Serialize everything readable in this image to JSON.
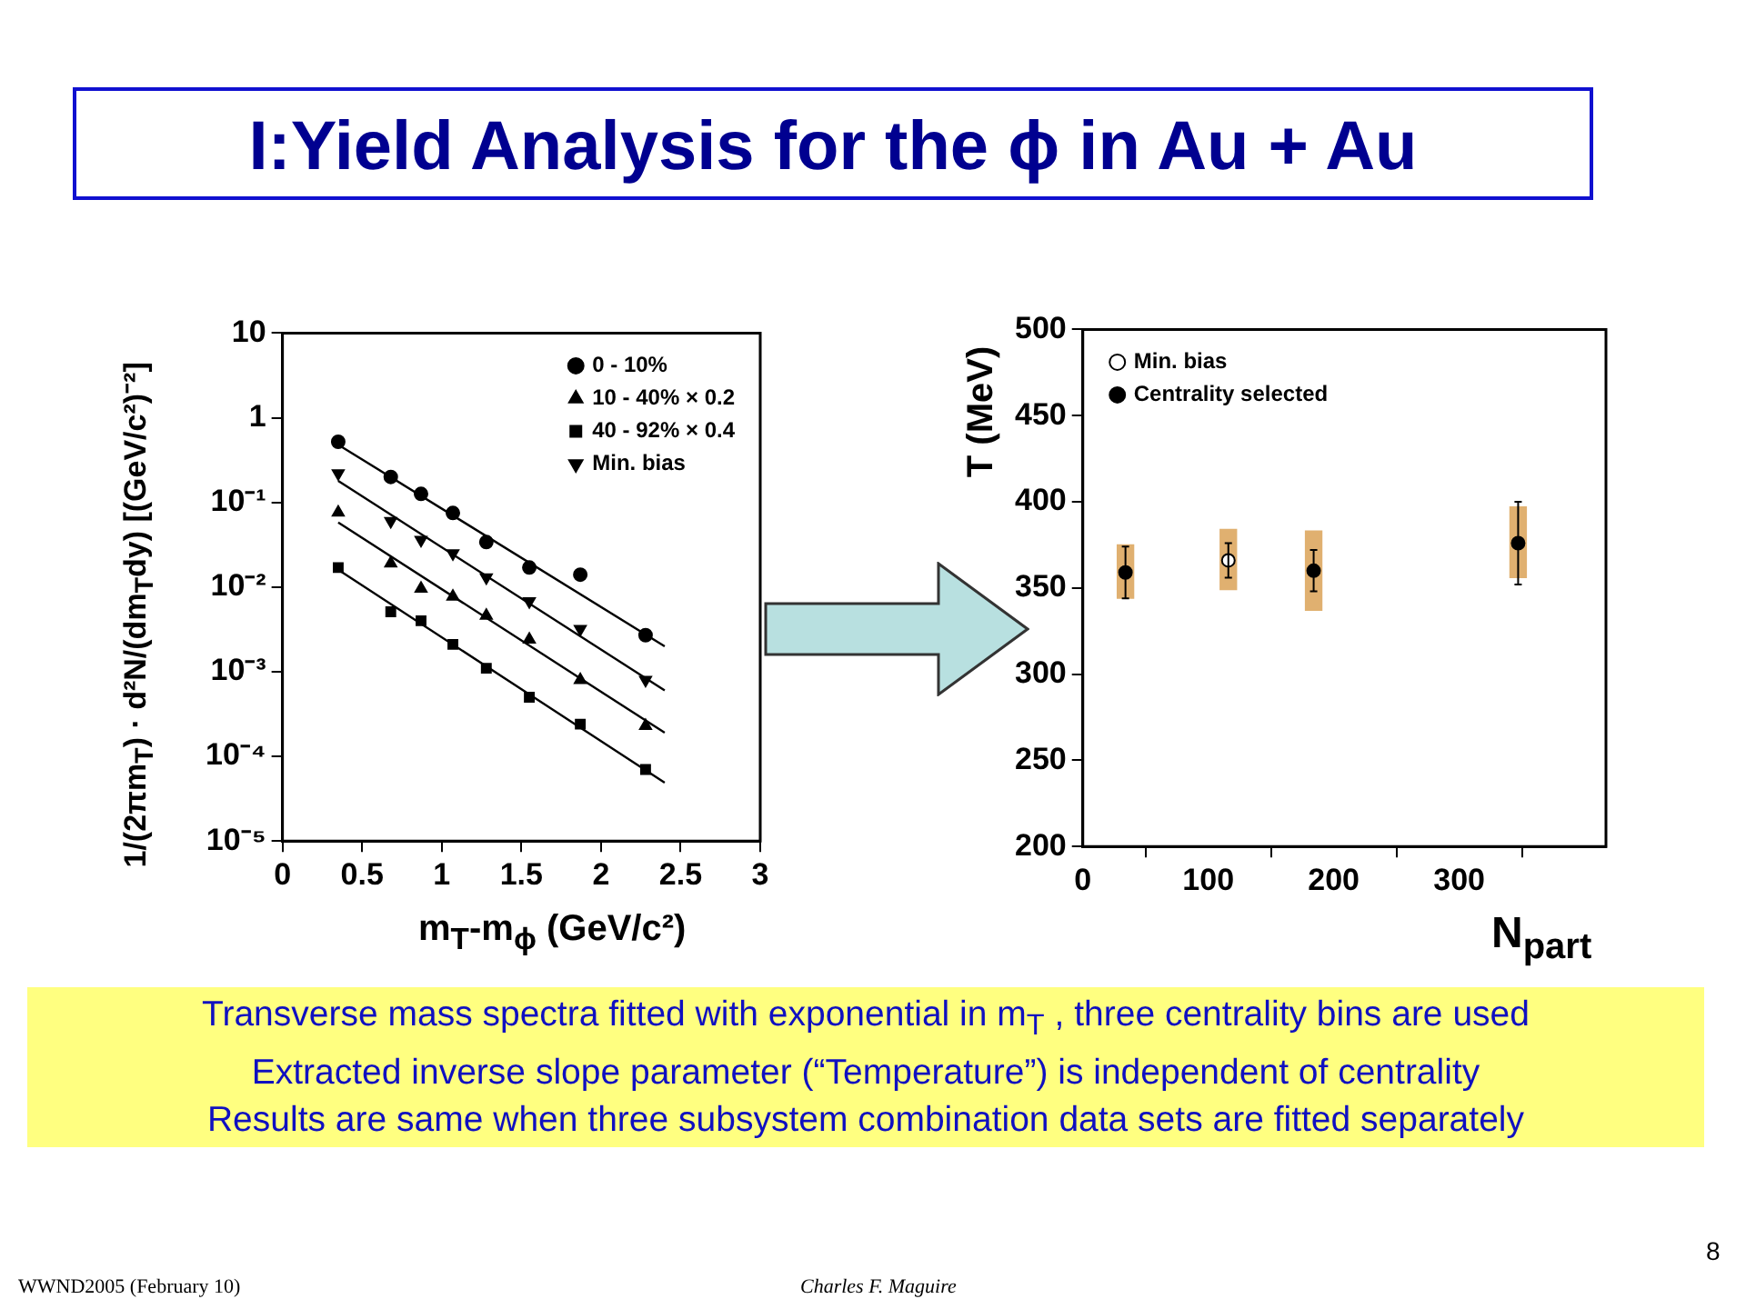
{
  "chart_data": [
    {
      "type": "scatter",
      "title": "I:Yield Analysis for the ϕ in Au + Au",
      "xlabel": "m$_{T}$-m$_{ϕ}$ (GeV/c²)",
      "ylabel": "1/(2πm$_{T}$) · d²N/(dm$_{T}$dy) [(GeV/c²)⁻²]",
      "log": "y",
      "xlim": [
        0,
        3
      ],
      "xticks": [
        0,
        0.5,
        1,
        1.5,
        2,
        2.5,
        3
      ],
      "ylim": [
        1e-05,
        10
      ],
      "yticks": [
        {
          "value": 1e-05,
          "label": "10⁻⁵"
        },
        {
          "value": 0.0001,
          "label": "10⁻⁴"
        },
        {
          "value": 0.001,
          "label": "10⁻³"
        },
        {
          "value": 0.01,
          "label": "10⁻²"
        },
        {
          "value": 0.1,
          "label": "10⁻¹"
        },
        1,
        10
      ],
      "grid": false,
      "legend": "top right",
      "series": [
        {
          "name": "0 - 10%",
          "color": "#000000",
          "marker": "circle",
          "x": [
            0.35,
            0.68,
            0.87,
            1.07,
            1.28,
            1.55,
            1.87,
            2.28
          ],
          "values": [
            0.52,
            0.2,
            0.126,
            0.075,
            0.034,
            0.017,
            0.014,
            0.0027
          ]
        },
        {
          "name": "10 - 40% × 0.2",
          "color": "#000000",
          "marker": "triangle",
          "x": [
            0.35,
            0.68,
            0.87,
            1.07,
            1.28,
            1.55,
            1.87,
            2.28
          ],
          "values": [
            0.076,
            0.019,
            0.0096,
            0.0077,
            0.0046,
            0.0024,
            0.0008,
            0.00023
          ]
        },
        {
          "name": "40 - 92% × 0.4",
          "color": "#000000",
          "marker": "square",
          "x": [
            0.35,
            0.68,
            0.87,
            1.07,
            1.28,
            1.55,
            1.87,
            2.28
          ],
          "values": [
            0.017,
            0.0051,
            0.004,
            0.0021,
            0.0011,
            0.0005,
            0.00024,
            7e-05
          ]
        },
        {
          "name": "Min. bias",
          "color": "#000000",
          "marker": "triangle_down",
          "x": [
            0.35,
            0.68,
            0.87,
            1.07,
            1.28,
            1.55,
            1.87,
            2.28
          ],
          "values": [
            0.22,
            0.06,
            0.036,
            0.025,
            0.013,
            0.0068,
            0.0032,
            0.0008
          ]
        },
        {
          "type": "line",
          "color": "#000000",
          "marker": "none",
          "x": [
            0.35,
            2.4
          ],
          "values": [
            0.48,
            0.002
          ]
        },
        {
          "type": "line",
          "color": "#000000",
          "marker": "none",
          "x": [
            0.35,
            2.4
          ],
          "values": [
            0.058,
            0.00019
          ]
        },
        {
          "type": "line",
          "color": "#000000",
          "marker": "none",
          "x": [
            0.35,
            2.4
          ],
          "values": [
            0.016,
            4.9e-05
          ]
        },
        {
          "type": "line",
          "color": "#000000",
          "marker": "none",
          "x": [
            0.35,
            2.4
          ],
          "values": [
            0.18,
            0.0006
          ]
        }
      ],
      "annotations": [
        "Transverse mass spectra fitted with exponential in m$_{T}$ , three centrality bins are used",
        "Extracted inverse slope parameter (“Temperature”) is independent of centrality",
        "Results are same when three subsystem combination data sets are fitted separately",
        "WWND2005  (February 10)",
        "Charles F. Maguire",
        "8"
      ]
    },
    {
      "type": "scatter",
      "xlabel": "N$_{part}$",
      "ylabel": "T (MeV)",
      "xlim": [
        0,
        417
      ],
      "xticks": [
        0,
        100,
        200,
        300
      ],
      "ylim": [
        200,
        500
      ],
      "yticks": [
        200,
        250,
        300,
        350,
        400,
        450,
        500
      ],
      "grid": false,
      "legend": "top left",
      "series": [
        {
          "type": "bar",
          "color": "#e0b070",
          "x": [
            34,
            116,
            184,
            347
          ],
          "base": [
            344,
            349,
            337,
            356
          ],
          "values": [
            31,
            35,
            46,
            41
          ]
        },
        {
          "name": "Min. bias",
          "color": "#000000",
          "marker": "circle_open",
          "x": [
            116
          ],
          "values": [
            366
          ],
          "errors": [
            10
          ]
        },
        {
          "name": "Centrality selected",
          "color": "#000000",
          "marker": "circle",
          "x": [
            34,
            184,
            347
          ],
          "values": [
            359,
            360,
            376
          ],
          "errors": [
            15,
            12,
            24
          ]
        }
      ]
    }
  ]
}
